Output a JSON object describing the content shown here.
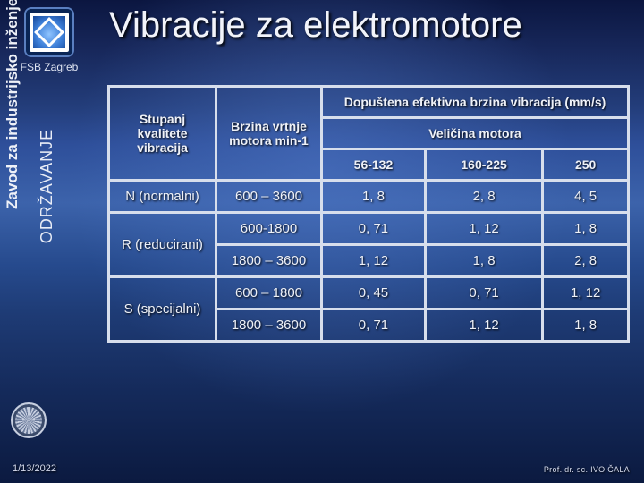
{
  "header": {
    "affiliation": "FSB Zagreb",
    "vertical_outer": "Zavod za industrijsko inženjerstvo",
    "vertical_inner": "ODRŽAVANJE",
    "title": "Vibracije za elektromotore"
  },
  "table": {
    "col1_header": "Stupanj kvalitete vibracija",
    "col2_header": "Brzina vrtnje motora min-1",
    "group_header": "Dopuštena efektivna brzina vibracija (mm/s)",
    "subgroup_header": "Veličina motora",
    "size_labels": [
      "56-132",
      "160-225",
      "250"
    ],
    "rows": [
      {
        "label": "N (normalni)",
        "speed": "600 – 3600",
        "v": [
          "1, 8",
          "2, 8",
          "4, 5"
        ]
      },
      {
        "label": "R (reducirani)",
        "speed": "600-1800",
        "v": [
          "0, 71",
          "1, 12",
          "1, 8"
        ]
      },
      {
        "label": "",
        "speed": "1800 – 3600",
        "v": [
          "1, 12",
          "1, 8",
          "2, 8"
        ]
      },
      {
        "label": "S (specijalni)",
        "speed": "600 – 1800",
        "v": [
          "0, 45",
          "0, 71",
          "1, 12"
        ]
      },
      {
        "label": "",
        "speed": "1800 – 3600",
        "v": [
          "0, 71",
          "1, 12",
          "1, 8"
        ]
      }
    ]
  },
  "footer": {
    "date": "1/13/2022",
    "author": "Prof. dr. sc. IVO ČALA"
  },
  "style": {
    "title_color": "#f2f4fa",
    "border_color": "#d7deec",
    "text_color": "#eef1f8",
    "title_fontsize": 40,
    "table_fontsize": 15
  }
}
